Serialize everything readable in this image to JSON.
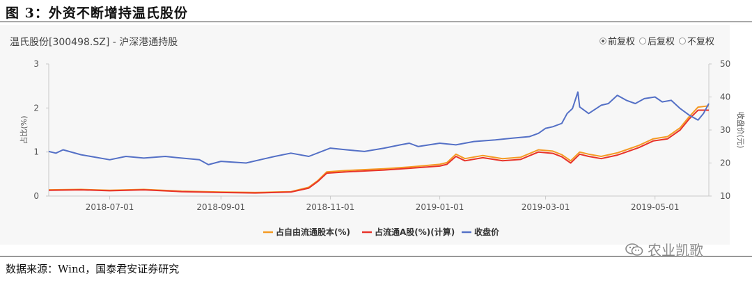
{
  "figure_title": "图 3：外资不断增持温氏股份",
  "source": "数据来源：Wind，国泰君安证券研究",
  "watermark": "农业凯歌",
  "price_options": [
    {
      "label": "前复权",
      "selected": true
    },
    {
      "label": "后复权",
      "selected": false
    },
    {
      "label": "不复权",
      "selected": false
    }
  ],
  "chart_data": {
    "type": "line",
    "title": "温氏股份[300498.SZ] - 沪深港通持股",
    "x_ticks": [
      "2018-07-01",
      "2018-09-01",
      "2018-11-01",
      "2019-01-01",
      "2019-03-01",
      "2019-05-01"
    ],
    "x_range": [
      "2018-05-28",
      "2019-05-31"
    ],
    "y_left": {
      "label": "占比(%)",
      "range": [
        0,
        3
      ],
      "ticks": [
        "0",
        "1",
        "2",
        "3"
      ]
    },
    "y_right": {
      "label": "收盘价(元)",
      "range": [
        10,
        50
      ],
      "ticks": [
        "10",
        "20",
        "30",
        "40",
        "50"
      ]
    },
    "grid": false,
    "legend_position": "bottom",
    "series": [
      {
        "name": "占自由流通股本(%)",
        "axis": "left",
        "color": "#f59a23",
        "points": [
          [
            "2018-05-28",
            0.14
          ],
          [
            "2018-06-15",
            0.15
          ],
          [
            "2018-07-01",
            0.13
          ],
          [
            "2018-07-20",
            0.15
          ],
          [
            "2018-08-10",
            0.11
          ],
          [
            "2018-09-01",
            0.09
          ],
          [
            "2018-09-20",
            0.08
          ],
          [
            "2018-10-01",
            0.09
          ],
          [
            "2018-10-10",
            0.1
          ],
          [
            "2018-10-20",
            0.2
          ],
          [
            "2018-10-25",
            0.35
          ],
          [
            "2018-10-30",
            0.55
          ],
          [
            "2018-11-10",
            0.58
          ],
          [
            "2018-12-01",
            0.62
          ],
          [
            "2018-12-15",
            0.66
          ],
          [
            "2019-01-01",
            0.72
          ],
          [
            "2019-01-05",
            0.76
          ],
          [
            "2019-01-10",
            0.95
          ],
          [
            "2019-01-15",
            0.85
          ],
          [
            "2019-01-25",
            0.92
          ],
          [
            "2019-02-05",
            0.85
          ],
          [
            "2019-02-15",
            0.88
          ],
          [
            "2019-02-25",
            1.05
          ],
          [
            "2019-03-05",
            1.02
          ],
          [
            "2019-03-10",
            0.94
          ],
          [
            "2019-03-15",
            0.8
          ],
          [
            "2019-03-20",
            1.0
          ],
          [
            "2019-03-25",
            0.95
          ],
          [
            "2019-04-01",
            0.9
          ],
          [
            "2019-04-10",
            0.98
          ],
          [
            "2019-04-15",
            1.05
          ],
          [
            "2019-04-22",
            1.15
          ],
          [
            "2019-04-30",
            1.3
          ],
          [
            "2019-05-08",
            1.35
          ],
          [
            "2019-05-15",
            1.55
          ],
          [
            "2019-05-20",
            1.8
          ],
          [
            "2019-05-25",
            2.02
          ],
          [
            "2019-05-31",
            2.05
          ]
        ]
      },
      {
        "name": "占流通A股(%)(计算)",
        "axis": "left",
        "color": "#e8332a",
        "points": [
          [
            "2018-05-28",
            0.13
          ],
          [
            "2018-06-15",
            0.14
          ],
          [
            "2018-07-01",
            0.12
          ],
          [
            "2018-07-20",
            0.14
          ],
          [
            "2018-08-10",
            0.1
          ],
          [
            "2018-09-01",
            0.08
          ],
          [
            "2018-09-20",
            0.07
          ],
          [
            "2018-10-01",
            0.08
          ],
          [
            "2018-10-10",
            0.09
          ],
          [
            "2018-10-20",
            0.18
          ],
          [
            "2018-10-25",
            0.33
          ],
          [
            "2018-10-30",
            0.52
          ],
          [
            "2018-11-10",
            0.55
          ],
          [
            "2018-12-01",
            0.59
          ],
          [
            "2018-12-15",
            0.63
          ],
          [
            "2019-01-01",
            0.68
          ],
          [
            "2019-01-05",
            0.72
          ],
          [
            "2019-01-10",
            0.9
          ],
          [
            "2019-01-15",
            0.8
          ],
          [
            "2019-01-25",
            0.87
          ],
          [
            "2019-02-05",
            0.8
          ],
          [
            "2019-02-15",
            0.83
          ],
          [
            "2019-02-25",
            1.0
          ],
          [
            "2019-03-05",
            0.97
          ],
          [
            "2019-03-10",
            0.89
          ],
          [
            "2019-03-15",
            0.75
          ],
          [
            "2019-03-20",
            0.95
          ],
          [
            "2019-03-25",
            0.9
          ],
          [
            "2019-04-01",
            0.85
          ],
          [
            "2019-04-10",
            0.93
          ],
          [
            "2019-04-15",
            1.0
          ],
          [
            "2019-04-22",
            1.1
          ],
          [
            "2019-04-30",
            1.25
          ],
          [
            "2019-05-08",
            1.3
          ],
          [
            "2019-05-15",
            1.5
          ],
          [
            "2019-05-20",
            1.75
          ],
          [
            "2019-05-25",
            1.95
          ],
          [
            "2019-05-31",
            1.95
          ]
        ]
      },
      {
        "name": "收盘价",
        "axis": "right",
        "color": "#5470c6",
        "points": [
          [
            "2018-05-28",
            23.5
          ],
          [
            "2018-06-01",
            23.0
          ],
          [
            "2018-06-05",
            24.0
          ],
          [
            "2018-06-15",
            22.5
          ],
          [
            "2018-07-01",
            21.0
          ],
          [
            "2018-07-10",
            22.0
          ],
          [
            "2018-07-20",
            21.5
          ],
          [
            "2018-08-01",
            22.0
          ],
          [
            "2018-08-10",
            21.5
          ],
          [
            "2018-08-20",
            21.0
          ],
          [
            "2018-08-25",
            19.5
          ],
          [
            "2018-09-01",
            20.5
          ],
          [
            "2018-09-15",
            20.0
          ],
          [
            "2018-10-01",
            22.0
          ],
          [
            "2018-10-10",
            23.0
          ],
          [
            "2018-10-20",
            22.0
          ],
          [
            "2018-11-01",
            24.5
          ],
          [
            "2018-11-10",
            24.0
          ],
          [
            "2018-11-20",
            23.5
          ],
          [
            "2018-12-01",
            24.5
          ],
          [
            "2018-12-10",
            25.5
          ],
          [
            "2018-12-15",
            26.0
          ],
          [
            "2018-12-20",
            25.0
          ],
          [
            "2019-01-01",
            26.0
          ],
          [
            "2019-01-10",
            25.5
          ],
          [
            "2019-01-20",
            26.5
          ],
          [
            "2019-02-01",
            27.0
          ],
          [
            "2019-02-10",
            27.5
          ],
          [
            "2019-02-20",
            28.0
          ],
          [
            "2019-02-25",
            29.0
          ],
          [
            "2019-03-01",
            30.5
          ],
          [
            "2019-03-05",
            31.0
          ],
          [
            "2019-03-10",
            32.0
          ],
          [
            "2019-03-13",
            35.0
          ],
          [
            "2019-03-16",
            36.5
          ],
          [
            "2019-03-19",
            41.5
          ],
          [
            "2019-03-20",
            37.0
          ],
          [
            "2019-03-25",
            35.0
          ],
          [
            "2019-04-01",
            37.5
          ],
          [
            "2019-04-05",
            38.0
          ],
          [
            "2019-04-10",
            40.5
          ],
          [
            "2019-04-15",
            39.0
          ],
          [
            "2019-04-20",
            38.0
          ],
          [
            "2019-04-25",
            39.5
          ],
          [
            "2019-05-01",
            40.0
          ],
          [
            "2019-05-05",
            38.5
          ],
          [
            "2019-05-10",
            39.0
          ],
          [
            "2019-05-15",
            36.5
          ],
          [
            "2019-05-20",
            34.5
          ],
          [
            "2019-05-25",
            33.0
          ],
          [
            "2019-05-28",
            35.0
          ],
          [
            "2019-05-31",
            38.0
          ]
        ]
      }
    ]
  }
}
